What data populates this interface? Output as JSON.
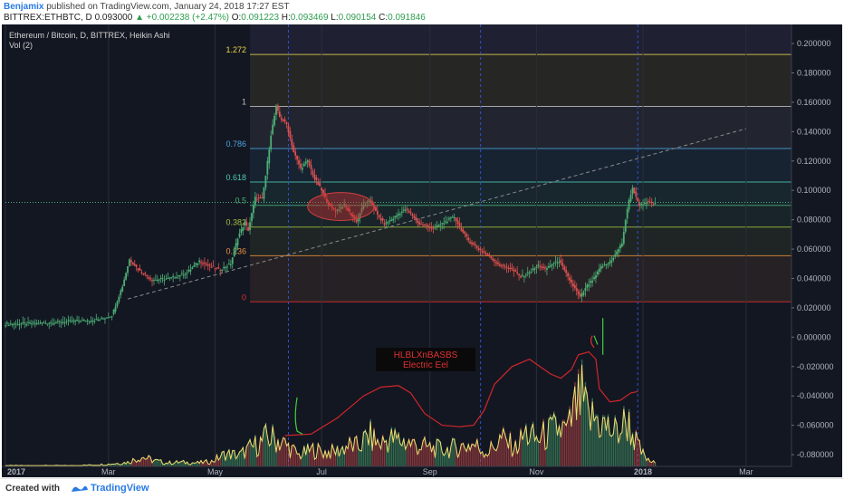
{
  "header": {
    "author": "Benjamix",
    "published": "published on TradingView.com, January 24, 2018 17:27 EST",
    "symbol": "BITTREX:ETHBTC, D",
    "last": "0.093000",
    "change": "+0.002238 (+2.47%)",
    "open_label": "O:",
    "open": "0.091223",
    "high_label": "H:",
    "high": "0.093469",
    "low_label": "L:",
    "low": "0.090154",
    "close_label": "C:",
    "close": "0.091846"
  },
  "legend": {
    "title": "Ethereum / Bitcoin, D, BITTREX, Heikin Ashi",
    "vol": "Vol (2)"
  },
  "annotation": {
    "line1": "HLBLXnBASBS",
    "line2": "Electric Eel"
  },
  "footer": {
    "created": "Created with",
    "brand": "TradingView"
  },
  "colors": {
    "background": "#131722",
    "up": "#4caf75",
    "down": "#e05050",
    "volume_line": "#f0e070",
    "osc_line": "#d0262a",
    "trend": "#8a8a8a"
  },
  "chart_data": {
    "type": "candlestick",
    "price_axis": [
      "0.200000",
      "0.180000",
      "0.160000",
      "0.140000",
      "0.120000",
      "0.100000",
      "0.080000",
      "0.060000",
      "0.040000",
      "0.020000",
      "0.000000",
      "-0.020000",
      "-0.040000",
      "-0.060000",
      "-0.080000"
    ],
    "price_axis_values": [
      0.2,
      0.18,
      0.16,
      0.14,
      0.12,
      0.1,
      0.08,
      0.06,
      0.04,
      0.02,
      0,
      -0.02,
      -0.04,
      -0.06,
      -0.08
    ],
    "time_axis": [
      "2017",
      "Mar",
      "May",
      "Jul",
      "Sep",
      "Nov",
      "2018",
      "Mar"
    ],
    "time_axis_pos": [
      0,
      59,
      120,
      181,
      243,
      304,
      365,
      424
    ],
    "fib_levels": [
      {
        "label": "1.272",
        "value": 0.1926,
        "color": "#e8d44d"
      },
      {
        "label": "1",
        "value": 0.1572,
        "color": "#bdbdbd"
      },
      {
        "label": "0.786",
        "value": 0.1285,
        "color": "#4aa3df"
      },
      {
        "label": "0.618",
        "value": 0.1057,
        "color": "#4ec9b0"
      },
      {
        "label": "0.5",
        "value": 0.0898,
        "color": "#4caf75"
      },
      {
        "label": "0.382",
        "value": 0.075,
        "color": "#a0c040"
      },
      {
        "label": "0.236",
        "value": 0.0555,
        "color": "#e89040"
      },
      {
        "label": "0",
        "value": 0.0241,
        "color": "#e03030"
      }
    ],
    "price_path": [
      [
        0,
        0.009
      ],
      [
        20,
        0.0095
      ],
      [
        40,
        0.011
      ],
      [
        55,
        0.012
      ],
      [
        62,
        0.015
      ],
      [
        68,
        0.035
      ],
      [
        72,
        0.053
      ],
      [
        78,
        0.045
      ],
      [
        85,
        0.039
      ],
      [
        95,
        0.04
      ],
      [
        105,
        0.044
      ],
      [
        112,
        0.052
      ],
      [
        118,
        0.048
      ],
      [
        124,
        0.046
      ],
      [
        130,
        0.05
      ],
      [
        134,
        0.068
      ],
      [
        138,
        0.078
      ],
      [
        140,
        0.073
      ],
      [
        144,
        0.095
      ],
      [
        148,
        0.094
      ],
      [
        150,
        0.11
      ],
      [
        153,
        0.138
      ],
      [
        156,
        0.157
      ],
      [
        158,
        0.15
      ],
      [
        162,
        0.145
      ],
      [
        166,
        0.126
      ],
      [
        170,
        0.115
      ],
      [
        174,
        0.12
      ],
      [
        178,
        0.108
      ],
      [
        182,
        0.1
      ],
      [
        186,
        0.09
      ],
      [
        190,
        0.086
      ],
      [
        195,
        0.09
      ],
      [
        198,
        0.085
      ],
      [
        202,
        0.079
      ],
      [
        206,
        0.09
      ],
      [
        210,
        0.093
      ],
      [
        214,
        0.083
      ],
      [
        218,
        0.077
      ],
      [
        222,
        0.08
      ],
      [
        226,
        0.084
      ],
      [
        230,
        0.087
      ],
      [
        234,
        0.083
      ],
      [
        238,
        0.077
      ],
      [
        242,
        0.076
      ],
      [
        246,
        0.074
      ],
      [
        252,
        0.078
      ],
      [
        258,
        0.082
      ],
      [
        262,
        0.073
      ],
      [
        266,
        0.066
      ],
      [
        272,
        0.06
      ],
      [
        278,
        0.055
      ],
      [
        284,
        0.049
      ],
      [
        290,
        0.047
      ],
      [
        296,
        0.041
      ],
      [
        302,
        0.045
      ],
      [
        306,
        0.049
      ],
      [
        310,
        0.046
      ],
      [
        314,
        0.05
      ],
      [
        318,
        0.052
      ],
      [
        322,
        0.043
      ],
      [
        326,
        0.035
      ],
      [
        330,
        0.027
      ],
      [
        334,
        0.035
      ],
      [
        338,
        0.04
      ],
      [
        342,
        0.048
      ],
      [
        346,
        0.05
      ],
      [
        350,
        0.056
      ],
      [
        354,
        0.064
      ],
      [
        356,
        0.08
      ],
      [
        358,
        0.093
      ],
      [
        360,
        0.102
      ],
      [
        362,
        0.095
      ],
      [
        364,
        0.09
      ],
      [
        368,
        0.092
      ],
      [
        372,
        0.091
      ]
    ],
    "trendline": [
      [
        70,
        0.026
      ],
      [
        424,
        0.142
      ]
    ],
    "ellipse": {
      "cx": 192,
      "cy": 0.089,
      "rx": 19,
      "ry": 0.0095
    },
    "volume_peaks": [
      [
        0,
        1
      ],
      [
        20,
        1
      ],
      [
        40,
        1
      ],
      [
        58,
        3
      ],
      [
        70,
        6
      ],
      [
        78,
        14
      ],
      [
        84,
        9
      ],
      [
        92,
        5
      ],
      [
        100,
        6
      ],
      [
        110,
        5
      ],
      [
        118,
        7
      ],
      [
        126,
        18
      ],
      [
        134,
        16
      ],
      [
        140,
        26
      ],
      [
        146,
        34
      ],
      [
        150,
        42
      ],
      [
        156,
        38
      ],
      [
        162,
        28
      ],
      [
        168,
        16
      ],
      [
        176,
        24
      ],
      [
        184,
        20
      ],
      [
        190,
        22
      ],
      [
        196,
        30
      ],
      [
        202,
        28
      ],
      [
        208,
        44
      ],
      [
        214,
        32
      ],
      [
        220,
        40
      ],
      [
        228,
        36
      ],
      [
        236,
        30
      ],
      [
        244,
        26
      ],
      [
        252,
        24
      ],
      [
        260,
        28
      ],
      [
        268,
        32
      ],
      [
        276,
        20
      ],
      [
        284,
        40
      ],
      [
        292,
        26
      ],
      [
        298,
        48
      ],
      [
        304,
        38
      ],
      [
        310,
        46
      ],
      [
        316,
        54
      ],
      [
        322,
        50
      ],
      [
        326,
        82
      ],
      [
        330,
        96
      ],
      [
        334,
        66
      ],
      [
        338,
        70
      ],
      [
        344,
        56
      ],
      [
        350,
        48
      ],
      [
        356,
        66
      ],
      [
        360,
        40
      ],
      [
        364,
        20
      ],
      [
        368,
        8
      ],
      [
        372,
        5
      ]
    ],
    "oscillator": [
      [
        160,
        -0.067
      ],
      [
        175,
        -0.066
      ],
      [
        190,
        -0.055
      ],
      [
        205,
        -0.04
      ],
      [
        215,
        -0.034
      ],
      [
        225,
        -0.033
      ],
      [
        232,
        -0.038
      ],
      [
        240,
        -0.052
      ],
      [
        250,
        -0.06
      ],
      [
        260,
        -0.061
      ],
      [
        268,
        -0.06
      ],
      [
        274,
        -0.05
      ],
      [
        280,
        -0.032
      ],
      [
        290,
        -0.02
      ],
      [
        300,
        -0.015
      ],
      [
        306,
        -0.02
      ],
      [
        312,
        -0.025
      ],
      [
        318,
        -0.028
      ],
      [
        324,
        -0.022
      ],
      [
        328,
        -0.012
      ],
      [
        334,
        -0.01
      ],
      [
        338,
        -0.015
      ],
      [
        340,
        -0.035
      ],
      [
        346,
        -0.044
      ],
      [
        352,
        -0.043
      ],
      [
        358,
        -0.038
      ],
      [
        362,
        -0.037
      ]
    ],
    "xlim": [
      0,
      450
    ],
    "ylim": [
      -0.088,
      0.213
    ]
  }
}
